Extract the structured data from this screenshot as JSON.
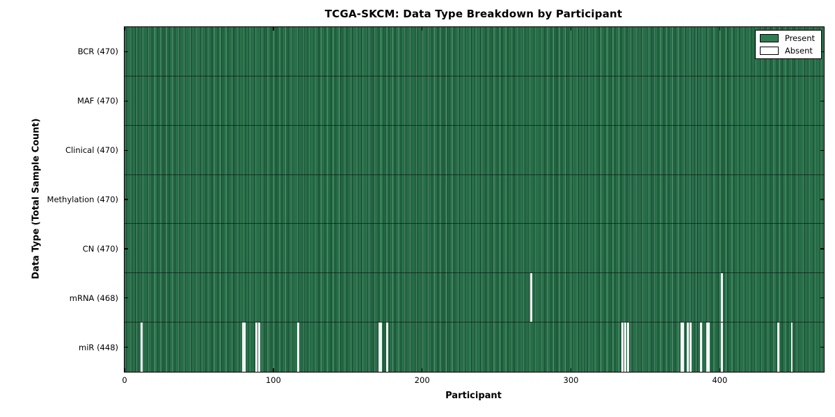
{
  "figure": {
    "background": "#ffffff"
  },
  "legend": {
    "items": [
      {
        "label": "Present",
        "color": "#2e7d52"
      },
      {
        "label": "Absent",
        "color": "#ffffff"
      }
    ]
  },
  "chart_data": {
    "type": "heatmap",
    "title": "TCGA-SKCM: Data Type Breakdown by Participant",
    "xlabel": "Participant",
    "ylabel": "Data Type (Total Sample Count)",
    "xlim": [
      0,
      470
    ],
    "x_ticks": [
      0,
      100,
      200,
      300,
      400
    ],
    "n_participants": 470,
    "legend_entries": [
      "Present",
      "Absent"
    ],
    "legend_position": "upper right",
    "grid": false,
    "colors": {
      "present": "#2e7d52",
      "present_edge": "#12422a",
      "absent": "#ffffff",
      "frame": "#000000"
    },
    "rows": [
      {
        "label": "BCR (470)",
        "data_type": "BCR",
        "present_count": 470,
        "absent_participants": []
      },
      {
        "label": "MAF (470)",
        "data_type": "MAF",
        "present_count": 470,
        "absent_participants": []
      },
      {
        "label": "Clinical (470)",
        "data_type": "Clinical",
        "present_count": 470,
        "absent_participants": []
      },
      {
        "label": "Methylation (470)",
        "data_type": "Methylation",
        "present_count": 470,
        "absent_participants": []
      },
      {
        "label": "CN (470)",
        "data_type": "CN",
        "present_count": 470,
        "absent_participants": []
      },
      {
        "label": "mRNA (468)",
        "data_type": "mRNA",
        "present_count": 468,
        "absent_participants": [
          273,
          401
        ]
      },
      {
        "label": "miR (448)",
        "data_type": "miR",
        "present_count": 448,
        "absent_participants": [
          11,
          79,
          80,
          88,
          90,
          116,
          171,
          172,
          176,
          334,
          336,
          338,
          374,
          375,
          378,
          380,
          387,
          391,
          392,
          401,
          439,
          448
        ]
      }
    ]
  }
}
